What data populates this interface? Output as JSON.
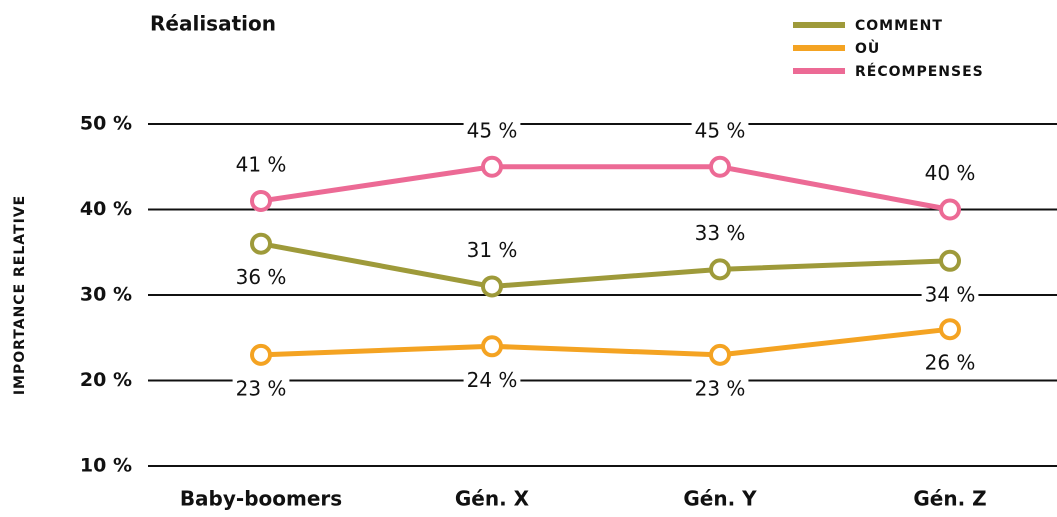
{
  "chart_data": {
    "type": "line",
    "title": "Réalisation",
    "y_label": "IMPORTANCE RELATIVE",
    "categories": [
      "Baby-boomers",
      "Gén. X",
      "Gén. Y",
      "Gén. Z"
    ],
    "series": [
      {
        "name": "COMMENT",
        "color": "#9e9a3a",
        "values": [
          36,
          31,
          33,
          34
        ],
        "value_labels": [
          "36 %",
          "31 %",
          "33 %",
          "34 %"
        ]
      },
      {
        "name": "OÙ",
        "color": "#f4a322",
        "values": [
          23,
          24,
          23,
          26
        ],
        "value_labels": [
          "23 %",
          "24 %",
          "23 %",
          "26 %"
        ]
      },
      {
        "name": "RÉCOMPENSES",
        "color": "#ec6a95",
        "values": [
          41,
          45,
          45,
          40
        ],
        "value_labels": [
          "41 %",
          "45 %",
          "45 %",
          "40 %"
        ]
      }
    ],
    "ylim": [
      10,
      50
    ],
    "yticks": [
      {
        "value": 10,
        "label": "10 %"
      },
      {
        "value": 20,
        "label": "20 %"
      },
      {
        "value": 30,
        "label": "30 %"
      },
      {
        "value": 40,
        "label": "40 %"
      },
      {
        "value": 50,
        "label": "50 %"
      }
    ],
    "grid": true,
    "legend": "top-right"
  }
}
